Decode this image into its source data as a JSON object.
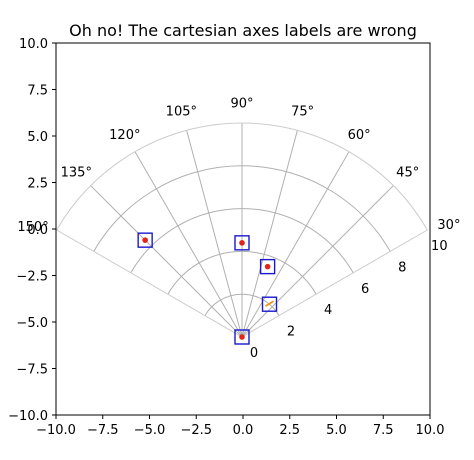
{
  "chart_data": {
    "type": "scatter",
    "title": "Oh no! The cartesian axes labels are wrong",
    "xlabel": "",
    "ylabel": "",
    "xlim": [
      -10.0,
      10.0
    ],
    "ylim": [
      -10.0,
      10.0
    ],
    "x_ticks": [
      "−10.0",
      "−7.5",
      "−5.0",
      "−2.5",
      "0.0",
      "2.5",
      "5.0",
      "7.5",
      "10.0"
    ],
    "y_ticks": [
      "10.0",
      "7.5",
      "5.0",
      "2.5",
      "0.0",
      "−2.5",
      "−5.0",
      "−7.5",
      "−10.0"
    ],
    "polar_inset": {
      "theta_range_deg": [
        30,
        150
      ],
      "radius_range": [
        0,
        10
      ],
      "theta_ticks": [
        "30°",
        "45°",
        "60°",
        "75°",
        "90°",
        "105°",
        "120°",
        "135°",
        "150°"
      ],
      "radial_ticks": [
        "0",
        "2",
        "4",
        "6",
        "8",
        "10"
      ],
      "grid": true,
      "grid_color": "#b0b0b0"
    },
    "points": [
      {
        "r": 0.0,
        "theta_deg": 90
      },
      {
        "r": 2.0,
        "theta_deg": 50
      },
      {
        "r": 3.5,
        "theta_deg": 70
      },
      {
        "r": 4.4,
        "theta_deg": 90
      },
      {
        "r": 6.4,
        "theta_deg": 135
      }
    ],
    "marker_color": "#e0261a",
    "box_color": "#1a1acc",
    "arrow_color": "#ff8c00",
    "grid": false
  }
}
